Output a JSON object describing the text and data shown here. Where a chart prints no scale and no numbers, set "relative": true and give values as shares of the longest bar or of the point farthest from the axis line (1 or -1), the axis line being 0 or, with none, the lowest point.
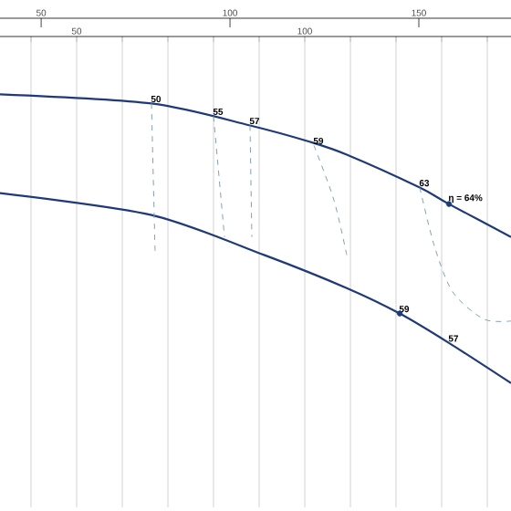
{
  "chart_data": {
    "type": "line",
    "relative": true,
    "grid": "x",
    "xlim": [
      33.2,
      145.2
    ],
    "xticks": [
      {
        "value": 40,
        "label": null
      },
      {
        "value": 50,
        "label": "50"
      },
      {
        "value": 60,
        "label": null
      },
      {
        "value": 70,
        "label": null
      },
      {
        "value": 80,
        "label": null
      },
      {
        "value": 90,
        "label": null
      },
      {
        "value": 100,
        "label": "100"
      },
      {
        "value": 110,
        "label": null
      },
      {
        "value": 120,
        "label": null
      },
      {
        "value": 130,
        "label": null
      },
      {
        "value": 140,
        "label": null
      }
    ],
    "x2lim": [
      39.1,
      174.4
    ],
    "x2ticks": [
      50,
      100,
      150
    ],
    "series": [
      {
        "color": "#1f3a7a",
        "x": [
          33.2,
          66.4,
          88,
          101.2,
          109.2,
          125.2,
          131.6,
          145.2
        ],
        "values": [
          1.0,
          0.968,
          0.892,
          0.835,
          0.791,
          0.677,
          0.62,
          0.506
        ]
      },
      {
        "color": "#1f3a7a",
        "x": [
          33.2,
          66.4,
          91.2,
          109.2,
          120.8,
          131.6,
          145.2
        ],
        "values": [
          0.658,
          0.582,
          0.443,
          0.329,
          0.241,
          0.139,
          0.0
        ]
      },
      {
        "color": "#7f9fbf",
        "line_style": "dashed",
        "x": [
          66.4,
          67.2
        ],
        "values": [
          0.968,
          0.45
        ]
      },
      {
        "color": "#7f9fbf",
        "line_style": "dashed",
        "x": [
          80,
          82.4
        ],
        "values": [
          0.924,
          0.506
        ]
      },
      {
        "color": "#7f9fbf",
        "line_style": "dashed",
        "x": [
          88,
          88.4
        ],
        "values": [
          0.892,
          0.506
        ]
      },
      {
        "color": "#7f9fbf",
        "line_style": "dashed",
        "x": [
          102,
          106.4,
          109.2
        ],
        "values": [
          0.823,
          0.633,
          0.443
        ]
      },
      {
        "color": "#7f9fbf",
        "line_style": "dashed",
        "x": [
          125.2,
          128.4,
          132.4,
          139.2,
          145.2
        ],
        "values": [
          0.677,
          0.475,
          0.316,
          0.222,
          0.215
        ]
      },
      {
        "type": "scatter",
        "marker": "circle",
        "color": "#1f3a7a",
        "x": [
          131.6,
          120.8
        ],
        "values": [
          0.62,
          0.241
        ]
      }
    ],
    "annotations": [
      {
        "text": "50",
        "x": 66.4,
        "y": 0.968
      },
      {
        "text": "55",
        "x": 80,
        "y": 0.924
      },
      {
        "text": "57",
        "x": 88,
        "y": 0.892
      },
      {
        "text": "59",
        "x": 102,
        "y": 0.823
      },
      {
        "text": "63",
        "x": 125.2,
        "y": 0.677
      },
      {
        "text": "η = 64%",
        "x": 131.6,
        "y": 0.62
      },
      {
        "text": "59",
        "x": 120.8,
        "y": 0.241
      },
      {
        "text": "57",
        "x": 131.6,
        "y": 0.139
      }
    ]
  }
}
